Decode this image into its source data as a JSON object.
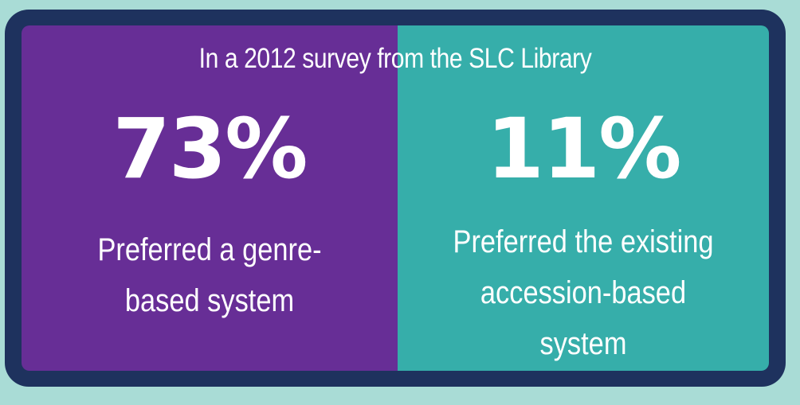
{
  "headline": "In a 2012 survey from the SLC Library",
  "left": {
    "stat": "73%",
    "caption_lines": [
      "Preferred a genre-",
      "based system"
    ]
  },
  "right": {
    "stat": "11%",
    "caption_lines": [
      "Preferred the existing",
      "accession-based",
      "system"
    ]
  },
  "colors": {
    "background": "#a9dcd6",
    "frame": "#1e325e",
    "left_panel": "#672e96",
    "right_panel": "#36aeaa",
    "text": "#ffffff"
  }
}
